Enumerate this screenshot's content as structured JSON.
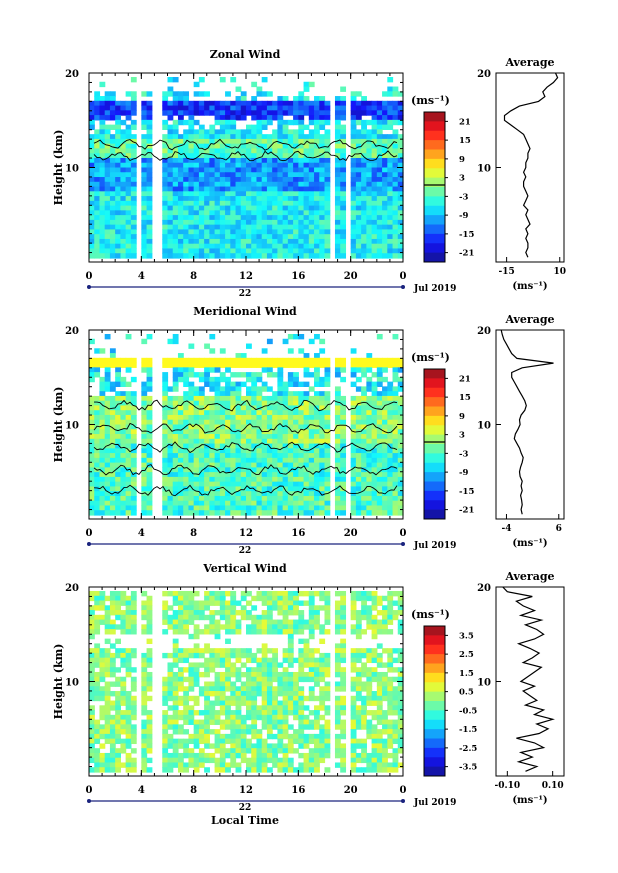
{
  "figure": {
    "xlabel_bottom": "Local Time"
  },
  "chart_data": [
    {
      "type": "heatmap",
      "title": "Zonal Wind",
      "ylabel": "Height (km)",
      "ylim": [
        0,
        20
      ],
      "yticks": [
        "20",
        "10"
      ],
      "xticks": [
        "0",
        "4",
        "8",
        "12",
        "16",
        "20",
        "0"
      ],
      "date_day": "22",
      "date_month_year": "Jul 2019",
      "colorbar": {
        "unit": "(ms⁻¹)",
        "ticks": [
          "21",
          "15",
          "9",
          "3",
          "-3",
          "-9",
          "-15",
          "-21"
        ],
        "range": [
          -24,
          24
        ]
      },
      "average": {
        "title": "Average",
        "xlabel": "(ms⁻¹)",
        "xticks": [
          "-15",
          "10"
        ],
        "xlim": [
          -20,
          12
        ],
        "yticks": [
          "20",
          "10"
        ],
        "height": [
          0.5,
          1,
          1.5,
          2,
          2.5,
          3,
          3.5,
          4,
          4.5,
          5,
          5.5,
          6,
          6.5,
          7,
          7.5,
          8,
          8.5,
          9,
          9.5,
          10,
          10.5,
          11,
          11.5,
          12,
          12.5,
          13,
          13.5,
          14,
          14.5,
          15,
          15.5,
          16,
          16.5,
          17,
          17.5,
          18,
          18.5,
          19,
          19.5,
          20
        ],
        "values": [
          -5,
          -6,
          -5,
          -5,
          -6,
          -5,
          -6,
          -4,
          -5,
          -6,
          -5,
          -7,
          -6,
          -5,
          -6,
          -7,
          -7,
          -6,
          -7,
          -6,
          -6,
          -5,
          -5,
          -4,
          -5,
          -6,
          -7,
          -10,
          -13,
          -16,
          -16,
          -13,
          -9,
          0,
          3,
          2,
          4,
          7,
          9,
          8
        ]
      }
    },
    {
      "type": "heatmap",
      "title": "Meridional Wind",
      "ylabel": "Height (km)",
      "ylim": [
        0,
        20
      ],
      "yticks": [
        "20",
        "10"
      ],
      "xticks": [
        "0",
        "4",
        "8",
        "12",
        "16",
        "20",
        "0"
      ],
      "date_day": "22",
      "date_month_year": "Jul 2019",
      "colorbar": {
        "unit": "(ms⁻¹)",
        "ticks": [
          "21",
          "15",
          "9",
          "3",
          "-3",
          "-9",
          "-15",
          "-21"
        ],
        "range": [
          -24,
          24
        ]
      },
      "average": {
        "title": "Average",
        "xlabel": "(ms⁻¹)",
        "xticks": [
          "-4",
          "6"
        ],
        "xlim": [
          -6,
          7
        ],
        "height": [
          0.5,
          1,
          1.5,
          2,
          2.5,
          3,
          3.5,
          4,
          4.5,
          5,
          5.5,
          6,
          6.5,
          7,
          7.5,
          8,
          8.5,
          9,
          9.5,
          10,
          10.5,
          11,
          11.5,
          12,
          12.5,
          13,
          13.5,
          14,
          14.5,
          15,
          15.5,
          16,
          16.5,
          17,
          17.5,
          18,
          18.5,
          19,
          19.5,
          20
        ],
        "values": [
          -1,
          -1.2,
          -1,
          -1.1,
          -1.3,
          -1,
          -1.2,
          -1,
          -1.4,
          -1.5,
          -1.3,
          -1,
          -0.8,
          -1.2,
          -1.5,
          -2,
          -2.5,
          -2.3,
          -1.8,
          -1.4,
          -1.5,
          -1.2,
          -0.5,
          -0.2,
          -0.5,
          -1,
          -1.5,
          -2,
          -2.5,
          -3,
          -3,
          -1,
          5,
          -2,
          -3,
          -3.5,
          -4,
          -4.5,
          -4.8,
          -5
        ]
      }
    },
    {
      "type": "heatmap",
      "title": "Vertical Wind",
      "ylabel": "Height (km)",
      "ylim": [
        0,
        20
      ],
      "yticks": [
        "20",
        "10"
      ],
      "xticks": [
        "0",
        "4",
        "8",
        "12",
        "16",
        "20",
        "0"
      ],
      "date_day": "22",
      "date_month_year": "Jul 2019",
      "colorbar": {
        "unit": "(ms⁻¹)",
        "ticks": [
          "3.5",
          "2.5",
          "1.5",
          "0.5",
          "-0.5",
          "-1.5",
          "-2.5",
          "-3.5"
        ],
        "range": [
          -4,
          4
        ]
      },
      "average": {
        "title": "Average",
        "xlabel": "(ms⁻¹)",
        "xticks": [
          "-0.10",
          "0.10"
        ],
        "xlim": [
          -0.15,
          0.15
        ],
        "height": [
          0.5,
          1,
          1.5,
          2,
          2.5,
          3,
          3.5,
          4,
          4.5,
          5,
          5.5,
          6,
          6.5,
          7,
          7.5,
          8,
          8.5,
          9,
          9.5,
          10,
          10.5,
          11,
          11.5,
          12,
          12.5,
          13,
          13.5,
          14,
          14.5,
          15,
          15.5,
          16,
          16.5,
          17,
          17.5,
          18,
          18.5,
          19,
          19.5,
          20
        ],
        "values": [
          -0.02,
          0.03,
          -0.05,
          0.01,
          -0.04,
          0.06,
          0.02,
          -0.06,
          0.04,
          0.08,
          0.03,
          0.1,
          0.02,
          0.06,
          -0.02,
          0.03,
          0.0,
          -0.03,
          0.02,
          -0.04,
          -0.01,
          0.02,
          0.05,
          -0.03,
          0.01,
          0.04,
          0.0,
          -0.05,
          0.02,
          0.06,
          0.03,
          -0.02,
          0.05,
          -0.04,
          0.02,
          -0.03,
          -0.06,
          0.01,
          -0.1,
          -0.12
        ]
      }
    }
  ]
}
